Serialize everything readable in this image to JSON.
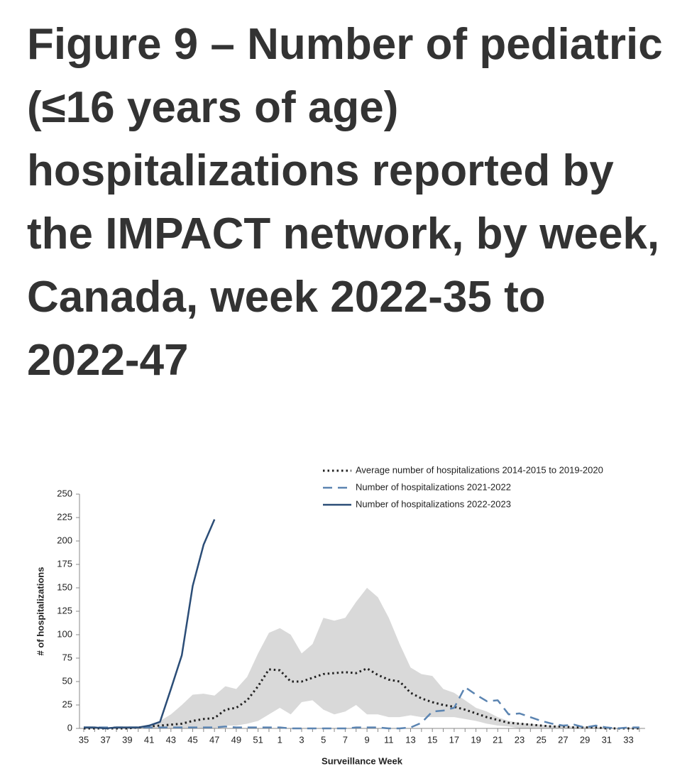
{
  "chart_data": {
    "type": "line",
    "title": "Figure 9 – Number of pediatric (≤16 years of age) hospitalizations reported by the IMPACT network, by week, Canada, week 2022-35 to 2022-47",
    "x_label": "Surveillance Week",
    "y_label": "# of hospitalizations",
    "categories": [
      "35",
      null,
      "37",
      null,
      "39",
      null,
      "41",
      null,
      "43",
      null,
      "45",
      null,
      "47",
      null,
      "49",
      null,
      "51",
      null,
      "1",
      null,
      "3",
      null,
      "5",
      null,
      "7",
      null,
      "9",
      null,
      "11",
      null,
      "13",
      null,
      "15",
      null,
      "17",
      null,
      "19",
      null,
      "21",
      null,
      "23",
      null,
      "25",
      null,
      "27",
      null,
      "29",
      null,
      "31",
      null,
      "33",
      null
    ],
    "ylim": [
      0,
      250
    ],
    "yticks": [
      0,
      25,
      50,
      75,
      100,
      125,
      150,
      175,
      200,
      225,
      250
    ],
    "band": {
      "color": "#d9d9d9",
      "upper": [
        0,
        0,
        0,
        0,
        0,
        1,
        2,
        8,
        15,
        25,
        36,
        37,
        35,
        45,
        42,
        55,
        80,
        102,
        107,
        100,
        80,
        90,
        118,
        115,
        118,
        135,
        150,
        140,
        118,
        90,
        65,
        58,
        56,
        42,
        38,
        30,
        22,
        18,
        12,
        8,
        6,
        5,
        4,
        3,
        3,
        2,
        2,
        1,
        1,
        0,
        0,
        0
      ],
      "lower": [
        0,
        0,
        0,
        0,
        0,
        0,
        0,
        0,
        0,
        0,
        0,
        0,
        0,
        3,
        3,
        5,
        8,
        15,
        22,
        15,
        28,
        30,
        20,
        15,
        18,
        25,
        15,
        15,
        12,
        12,
        14,
        12,
        12,
        12,
        12,
        10,
        8,
        5,
        3,
        2,
        0,
        0,
        0,
        0,
        0,
        0,
        0,
        0,
        0,
        0,
        0,
        0
      ]
    },
    "series": [
      {
        "name": "Average number of hospitalizations 2014-2015 to 2019-2020",
        "color": "#222222",
        "style": "dotted",
        "values": [
          0,
          0,
          0,
          0,
          0,
          1,
          2,
          3,
          4,
          5,
          8,
          10,
          11,
          20,
          22,
          30,
          45,
          63,
          62,
          50,
          50,
          54,
          58,
          59,
          60,
          59,
          64,
          57,
          52,
          50,
          38,
          32,
          28,
          25,
          23,
          20,
          16,
          12,
          9,
          6,
          5,
          4,
          3,
          2,
          2,
          1,
          1,
          1,
          0,
          0,
          0,
          0
        ]
      },
      {
        "name": "Number of hospitalizations 2021-2022",
        "color": "#5b84b1",
        "style": "dashed",
        "values": [
          1,
          1,
          1,
          1,
          1,
          1,
          1,
          1,
          1,
          1,
          1,
          1,
          1,
          2,
          1,
          1,
          1,
          1,
          1,
          0,
          0,
          0,
          0,
          0,
          0,
          1,
          1,
          1,
          0,
          0,
          1,
          6,
          18,
          19,
          22,
          44,
          36,
          29,
          30,
          15,
          16,
          12,
          8,
          5,
          3,
          4,
          1,
          3,
          1,
          0,
          1,
          1
        ]
      },
      {
        "name": "Number of hospitalizations 2022-2023",
        "color": "#2b4d77",
        "style": "solid",
        "values": [
          1,
          1,
          0,
          1,
          1,
          1,
          3,
          7,
          42,
          78,
          152,
          196,
          223,
          null,
          null,
          null,
          null,
          null,
          null,
          null,
          null,
          null,
          null,
          null,
          null,
          null,
          null,
          null,
          null,
          null,
          null,
          null,
          null,
          null,
          null,
          null,
          null,
          null,
          null,
          null,
          null,
          null,
          null,
          null,
          null,
          null,
          null,
          null,
          null,
          null,
          null,
          null
        ]
      }
    ]
  }
}
